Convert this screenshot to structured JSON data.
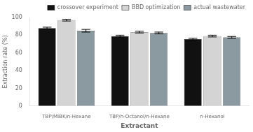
{
  "chart_data": {
    "type": "bar",
    "categories": [
      "TBP/MIBK/n-Hexane",
      "TBP/n-Octanol/n-Hexane",
      "n-Hexanol"
    ],
    "series": [
      {
        "name": "crossover experiment",
        "color": "#111111",
        "values": [
          88.0,
          79.0,
          75.5
        ],
        "errors": [
          1.0,
          1.0,
          1.0
        ]
      },
      {
        "name": "BBD optimization",
        "color": "#d4d4d4",
        "values": [
          97.0,
          83.5,
          79.0
        ],
        "errors": [
          1.0,
          1.0,
          1.0
        ]
      },
      {
        "name": "actual wastewater",
        "color": "#8a9aa0",
        "values": [
          85.0,
          82.5,
          77.5
        ],
        "errors": [
          1.5,
          1.0,
          1.0
        ]
      }
    ],
    "x_label": "Extractant",
    "y_label": "Extraction rate (%)",
    "ylim": [
      0,
      100
    ],
    "yticks": [
      0,
      20,
      40,
      60,
      80,
      100
    ],
    "grid": false,
    "legend": "upper right"
  }
}
